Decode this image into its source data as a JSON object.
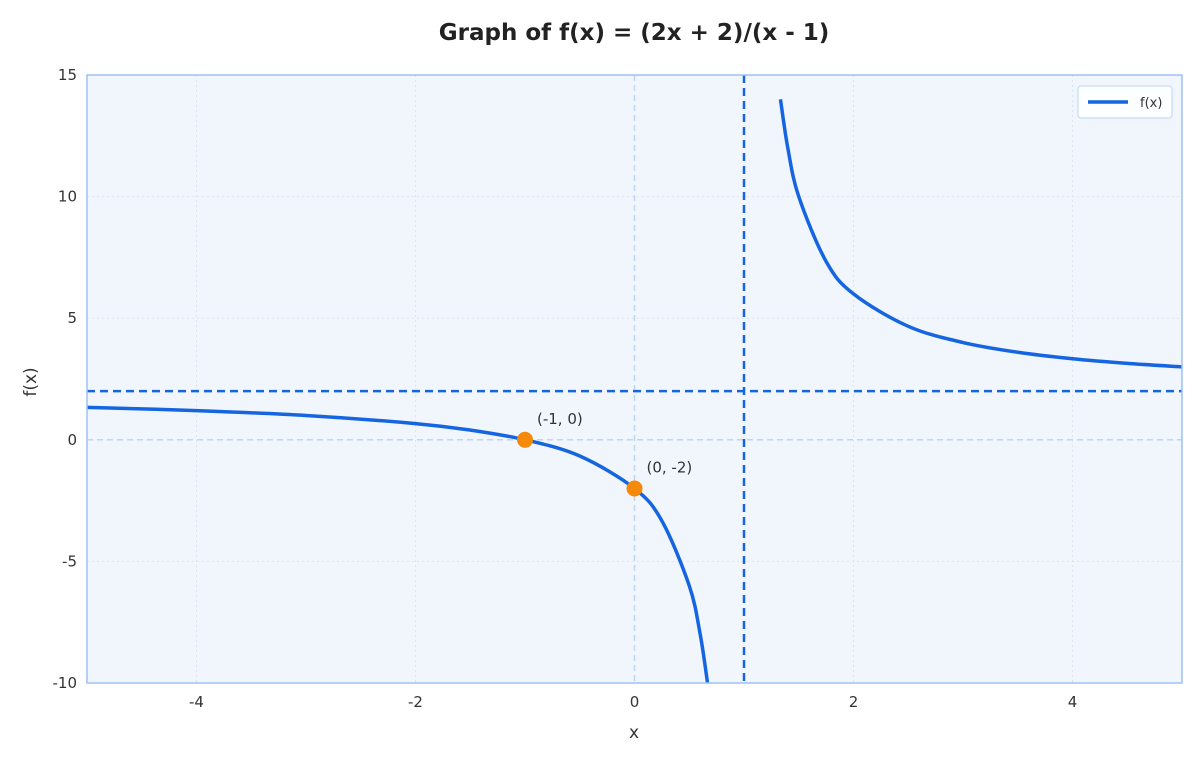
{
  "chart_data": {
    "type": "line",
    "title": "Graph of f(x) = (2x + 2)/(x - 1)",
    "xlabel": "x",
    "ylabel": "f(x)",
    "xlim": [
      -5,
      5
    ],
    "ylim": [
      -10,
      15
    ],
    "x_ticks": [
      -4,
      -2,
      0,
      2,
      4
    ],
    "x_tick_labels": [
      "-4",
      "-2",
      "0",
      "2",
      "4"
    ],
    "y_ticks": [
      -10,
      -5,
      0,
      5,
      10,
      15
    ],
    "y_tick_labels": [
      "-10",
      "-5",
      "0",
      "5",
      "10",
      "15"
    ],
    "grid": true,
    "legend_position": "top-right",
    "series": [
      {
        "name": "f(x)",
        "x": [
          -5,
          -4,
          -3,
          -2,
          -1.5,
          -1,
          -0.5,
          0,
          0.25,
          0.5,
          0.6,
          0.667,
          1.333,
          1.4,
          1.5,
          1.75,
          2,
          2.5,
          3,
          3.5,
          4,
          4.5,
          5
        ],
        "y": [
          1.333,
          1.2,
          1,
          0.667,
          0.4,
          0,
          -0.667,
          -2,
          -3.333,
          -6,
          -8,
          -10,
          14,
          12,
          10,
          7.333,
          6,
          4.667,
          4,
          3.6,
          3.333,
          3.143,
          3
        ],
        "color": "#1565e0"
      }
    ],
    "asymptotes": [
      {
        "orientation": "vertical",
        "value": 1
      },
      {
        "orientation": "horizontal",
        "value": 2
      }
    ],
    "points": [
      {
        "x": -1,
        "y": 0,
        "label": "(-1, 0)",
        "color": "#f5890a"
      },
      {
        "x": 0,
        "y": -2,
        "label": "(0, -2)",
        "color": "#f5890a"
      }
    ],
    "colors": {
      "line": "#1565e0",
      "point": "#f5890a",
      "plot_background": "#f1f6fd",
      "plot_border": "#9ec2f2",
      "grid": "#dbe5f2",
      "zero_axis": "#bcd6f2"
    }
  }
}
